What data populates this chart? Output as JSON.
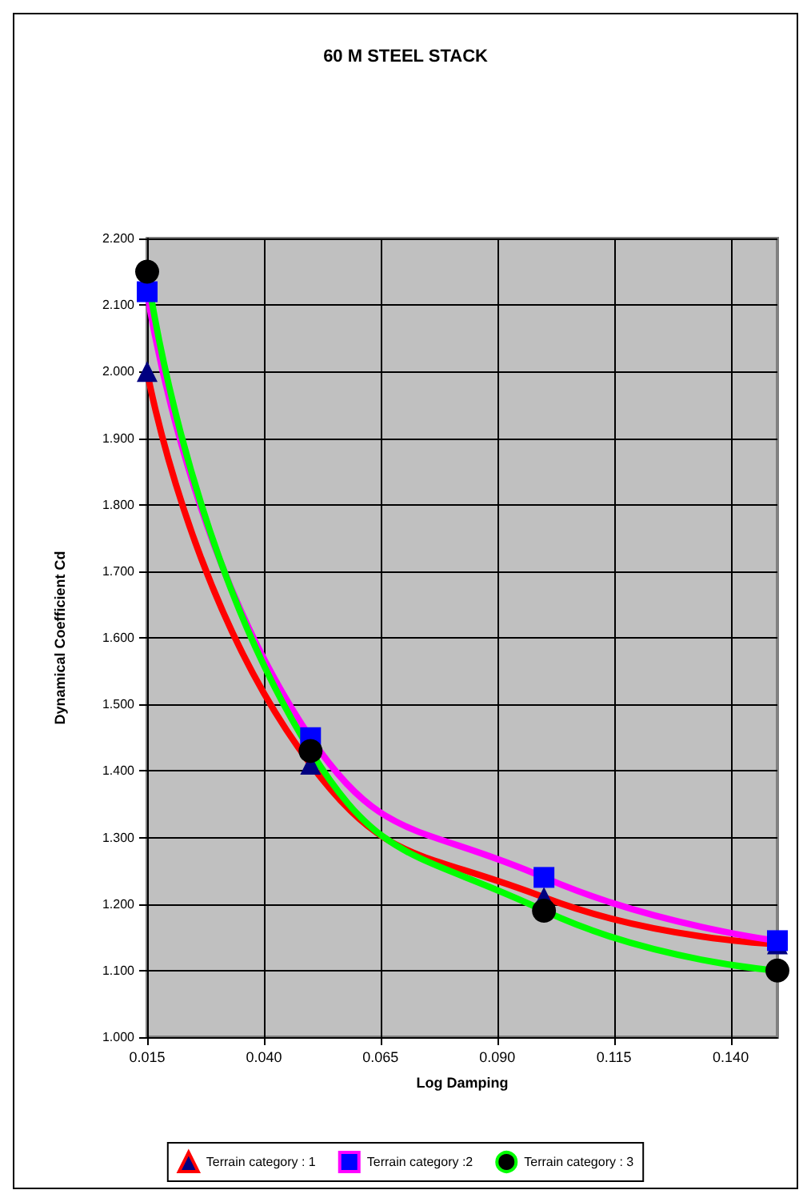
{
  "chart_data": {
    "type": "line",
    "title": "60 M STEEL STACK",
    "xlabel": "Log Damping",
    "ylabel": "Dynamical Coefficient Cd",
    "x": [
      0.015,
      0.05,
      0.1,
      0.15
    ],
    "series": [
      {
        "name": "Terrain category : 1",
        "color": "#ff0000",
        "colors": [
          "#000080",
          "#000080",
          "#000080",
          "#000080"
        ],
        "marker": "triangle",
        "values": [
          2.0,
          1.41,
          1.21,
          1.14
        ]
      },
      {
        "name": "Terrain category :2",
        "color": "#ff00ff",
        "colors": [
          "#0000ff",
          "#0000ff",
          "#0000ff",
          "#0000ff"
        ],
        "marker": "square",
        "values": [
          2.12,
          1.45,
          1.24,
          1.145
        ]
      },
      {
        "name": "Terrain category : 3",
        "color": "#00ff00",
        "colors": [
          "#000000",
          "#000000",
          "#000000",
          "#000000"
        ],
        "marker": "circle",
        "values": [
          2.15,
          1.43,
          1.19,
          1.1
        ]
      }
    ],
    "xlim": [
      0.015,
      0.15
    ],
    "xticks": [
      {
        "value": 0.015,
        "label": "0.015"
      },
      {
        "value": 0.04,
        "label": "0.040"
      },
      {
        "value": 0.065,
        "label": "0.065"
      },
      {
        "value": 0.09,
        "label": "0.090"
      },
      {
        "value": 0.115,
        "label": "0.115"
      },
      {
        "value": 0.14,
        "label": "0.140"
      }
    ],
    "ylim": [
      1.0,
      2.2
    ],
    "yticks": [
      {
        "value": 1.0,
        "label": "1.000"
      },
      {
        "value": 1.1,
        "label": "1.100"
      },
      {
        "value": 1.2,
        "label": "1.200"
      },
      {
        "value": 1.3,
        "label": "1.300"
      },
      {
        "value": 1.4,
        "label": "1.400"
      },
      {
        "value": 1.5,
        "label": "1.500"
      },
      {
        "value": 1.6,
        "label": "1.600"
      },
      {
        "value": 1.7,
        "label": "1.700"
      },
      {
        "value": 1.8,
        "label": "1.800"
      },
      {
        "value": 1.9,
        "label": "1.900"
      },
      {
        "value": 2.0,
        "label": "2.000"
      },
      {
        "value": 2.1,
        "label": "2.100"
      },
      {
        "value": 2.2,
        "label": "2.200"
      }
    ],
    "grid": true,
    "legend": "bottom",
    "line_style": "solid"
  }
}
